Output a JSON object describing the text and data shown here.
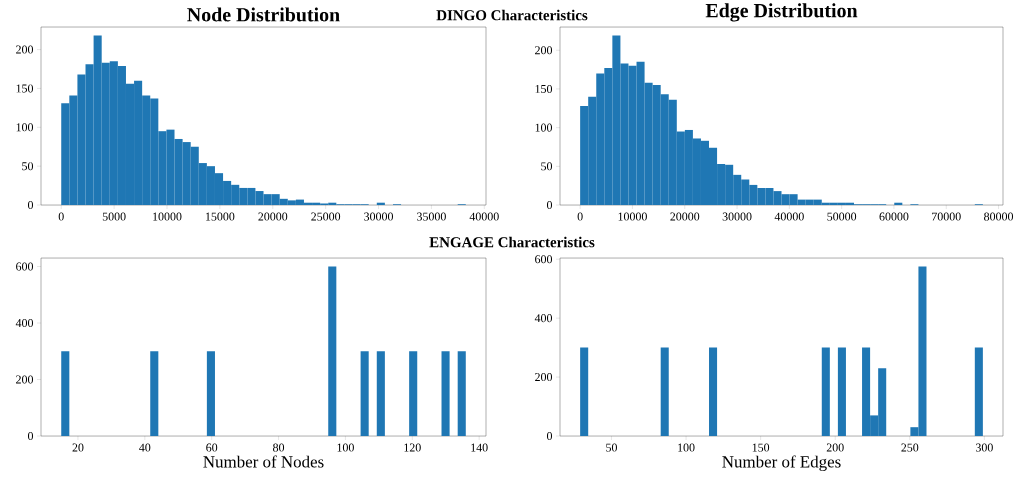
{
  "chart_data": [
    {
      "type": "histogram",
      "title": "Node Distribution",
      "annotations": [
        "DINGO Characteristics"
      ],
      "color": "#1f77b4",
      "grid": false,
      "bins": [
        0,
        765,
        1530,
        2295,
        3060,
        3825,
        4590,
        5355,
        6120,
        6885,
        7650,
        8415,
        9180,
        9945,
        10710,
        11475,
        12240,
        13005,
        13770,
        14535,
        15300,
        16065,
        16830,
        17595,
        18360,
        19125,
        19890,
        20655,
        21420,
        22185,
        22950,
        23715,
        24480,
        25245,
        26010,
        26775,
        27540,
        28305,
        29070,
        29835,
        30600,
        31365,
        32130,
        32895,
        33660,
        34425,
        35190,
        35955,
        36720,
        37485,
        38250
      ],
      "values": [
        131,
        141,
        168,
        181,
        218,
        183,
        185,
        179,
        156,
        160,
        141,
        137,
        95,
        97,
        85,
        81,
        75,
        54,
        50,
        41,
        31,
        26,
        22,
        22,
        18,
        14,
        14,
        8,
        6,
        7,
        3,
        3,
        2,
        3,
        1,
        1,
        1,
        1,
        0,
        3,
        0,
        1,
        0,
        0,
        0,
        0,
        0,
        0,
        0,
        1
      ],
      "xlim": [
        -1912,
        40162
      ],
      "ylim": [
        0,
        229
      ],
      "xticks": [
        0,
        5000,
        10000,
        15000,
        20000,
        25000,
        30000,
        35000,
        40000
      ],
      "yticks": [
        0,
        50,
        100,
        150,
        200
      ]
    },
    {
      "type": "histogram",
      "title": "Edge Distribution",
      "color": "#1f77b4",
      "grid": false,
      "bins": [
        0,
        1540,
        3080,
        4620,
        6160,
        7700,
        9240,
        10780,
        12320,
        13860,
        15400,
        16940,
        18480,
        20020,
        21560,
        23100,
        24640,
        26180,
        27720,
        29260,
        30800,
        32340,
        33880,
        35420,
        36960,
        38500,
        40040,
        41580,
        43120,
        44660,
        46200,
        47740,
        49280,
        50820,
        52360,
        53900,
        55440,
        56980,
        58520,
        60060,
        61600,
        63140,
        64680,
        66220,
        67760,
        69300,
        70840,
        72380,
        73920,
        75460,
        77000
      ],
      "values": [
        128,
        140,
        170,
        177,
        219,
        183,
        180,
        185,
        158,
        155,
        143,
        136,
        95,
        97,
        86,
        83,
        74,
        53,
        52,
        39,
        33,
        26,
        22,
        22,
        18,
        14,
        14,
        7,
        7,
        7,
        3,
        3,
        3,
        3,
        1,
        1,
        1,
        1,
        0,
        3,
        0,
        1,
        0,
        0,
        0,
        0,
        0,
        0,
        0,
        1
      ],
      "xlim": [
        -3850,
        80850
      ],
      "ylim": [
        0,
        230
      ],
      "xticks": [
        0,
        10000,
        20000,
        30000,
        40000,
        50000,
        60000,
        70000,
        80000
      ],
      "yticks": [
        0,
        50,
        100,
        150,
        200
      ]
    },
    {
      "type": "histogram",
      "xlabel": "Number of Nodes",
      "annotations": [
        "ENGAGE Characteristics"
      ],
      "color": "#1f77b4",
      "grid": false,
      "bins": [
        15,
        17.42,
        19.84,
        22.26,
        24.68,
        27.1,
        29.52,
        31.94,
        34.36,
        36.78,
        39.2,
        41.62,
        44.04,
        46.46,
        48.88,
        51.3,
        53.72,
        56.14,
        58.56,
        60.98,
        63.4,
        65.82,
        68.24,
        70.66,
        73.08,
        75.5,
        77.92,
        80.34,
        82.76,
        85.18,
        87.6,
        90.02,
        92.44,
        94.86,
        97.28,
        99.7,
        102.12,
        104.54,
        106.96,
        109.38,
        111.8,
        114.22,
        116.64,
        119.06,
        121.48,
        123.9,
        126.32,
        128.74,
        131.16,
        133.58,
        136
      ],
      "values": [
        300,
        0,
        0,
        0,
        0,
        0,
        0,
        0,
        0,
        0,
        0,
        300,
        0,
        0,
        0,
        0,
        0,
        0,
        300,
        0,
        0,
        0,
        0,
        0,
        0,
        0,
        0,
        0,
        0,
        0,
        0,
        0,
        0,
        600,
        0,
        0,
        0,
        300,
        0,
        300,
        0,
        0,
        0,
        300,
        0,
        0,
        0,
        300,
        0,
        300
      ],
      "xlim": [
        8.95,
        142.05
      ],
      "ylim": [
        0,
        630
      ],
      "xticks": [
        20,
        40,
        60,
        80,
        100,
        120,
        140
      ],
      "yticks": [
        0,
        200,
        400,
        600
      ]
    },
    {
      "type": "histogram",
      "xlabel": "Number of Edges",
      "color": "#1f77b4",
      "grid": false,
      "bins": [
        29,
        34.4,
        39.8,
        45.2,
        50.6,
        56,
        61.4,
        66.8,
        72.2,
        77.6,
        83,
        88.4,
        93.8,
        99.2,
        104.6,
        110,
        115.4,
        120.8,
        126.2,
        131.6,
        137,
        142.4,
        147.8,
        153.2,
        158.6,
        164,
        169.4,
        174.8,
        180.2,
        185.6,
        191,
        196.4,
        201.8,
        207.2,
        212.6,
        218,
        223.4,
        228.8,
        234.2,
        239.6,
        245,
        250.4,
        255.8,
        261.2,
        266.6,
        272,
        277.4,
        282.8,
        288.2,
        293.6,
        299
      ],
      "values": [
        300,
        0,
        0,
        0,
        0,
        0,
        0,
        0,
        0,
        0,
        300,
        0,
        0,
        0,
        0,
        0,
        300,
        0,
        0,
        0,
        0,
        0,
        0,
        0,
        0,
        0,
        0,
        0,
        0,
        0,
        300,
        0,
        300,
        0,
        0,
        300,
        70,
        230,
        0,
        0,
        0,
        30,
        575,
        0,
        0,
        0,
        0,
        0,
        0,
        300
      ],
      "xlim": [
        15.5,
        312.5
      ],
      "ylim": [
        0,
        604
      ],
      "xticks": [
        50,
        100,
        150,
        200,
        250,
        300
      ],
      "yticks": [
        0,
        200,
        400,
        600
      ]
    }
  ]
}
